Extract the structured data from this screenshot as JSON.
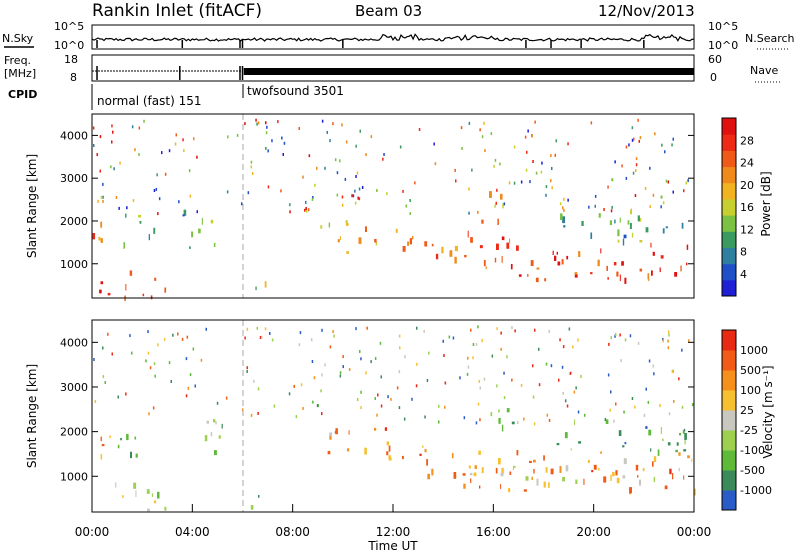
{
  "header": {
    "station": "Rankin Inlet (fitACF)",
    "beam": "Beam 03",
    "date": "12/Nov/2013"
  },
  "panels": {
    "noise": {
      "left_label": "N.Sky",
      "right_label": "N.Search",
      "left_ticks": [
        "10^5",
        "10^0"
      ],
      "right_ticks": [
        "10^5",
        "10^0"
      ]
    },
    "freq": {
      "left_label_1": "Freq.",
      "left_label_2": "[MHz]",
      "right_label": "Nave",
      "left_ticks": [
        "18",
        "8"
      ],
      "right_ticks": [
        "60",
        "0"
      ]
    },
    "cpid": {
      "label": "CPID",
      "modes": [
        {
          "name": "normal (fast) 151",
          "start_h": 0,
          "end_h": 6
        },
        {
          "name": "twofsound 3501",
          "start_h": 6,
          "end_h": 24
        }
      ]
    }
  },
  "chart_data": [
    {
      "type": "heatmap",
      "name": "power",
      "xlabel": "",
      "ylabel": "Slant Range [km]",
      "xlim_hours": [
        0,
        24
      ],
      "ylim": [
        200,
        4500
      ],
      "yticks": [
        "1000",
        "2000",
        "3000",
        "4000"
      ],
      "colorbar": {
        "label": "Power [dB]",
        "ticks": [
          "4",
          "8",
          "12",
          "16",
          "20",
          "24",
          "28"
        ],
        "colors": [
          "#1f1fd6",
          "#2050c8",
          "#2f7fa0",
          "#3a9a60",
          "#7bc242",
          "#c8d030",
          "#f2b321",
          "#f08a1c",
          "#f05a18",
          "#ee2a16",
          "#e01010"
        ]
      },
      "echo_regions": [
        {
          "t0": 0.1,
          "t1": 3.0,
          "r0": 250,
          "r1": 900,
          "level": 0.9
        },
        {
          "t0": 0.0,
          "t1": 0.7,
          "r0": 1100,
          "r1": 2200,
          "level": 0.7
        },
        {
          "t0": 1.0,
          "t1": 2.5,
          "r0": 1500,
          "r1": 2200,
          "level": 0.35
        },
        {
          "t0": 3.6,
          "t1": 5.3,
          "r0": 1400,
          "r1": 2300,
          "level": 0.35
        },
        {
          "t0": 6.3,
          "t1": 6.9,
          "r0": 300,
          "r1": 800,
          "level": 0.5
        },
        {
          "t0": 9.0,
          "t1": 10.4,
          "r0": 1200,
          "r1": 2100,
          "level": 0.55
        },
        {
          "t0": 10.6,
          "t1": 13.0,
          "r0": 1400,
          "r1": 2100,
          "level": 0.65
        },
        {
          "t0": 13.0,
          "t1": 15.0,
          "r0": 1000,
          "r1": 1800,
          "level": 0.7
        },
        {
          "t0": 14.8,
          "t1": 17.2,
          "r0": 700,
          "r1": 1700,
          "level": 0.85
        },
        {
          "t0": 17.2,
          "t1": 24.0,
          "r0": 650,
          "r1": 1600,
          "level": 0.88
        },
        {
          "t0": 15.5,
          "t1": 16.8,
          "r0": 2000,
          "r1": 2700,
          "level": 0.6
        },
        {
          "t0": 18.5,
          "t1": 23.8,
          "r0": 1500,
          "r1": 2300,
          "level": 0.35
        }
      ]
    },
    {
      "type": "heatmap",
      "name": "velocity",
      "xlabel": "Time UT",
      "ylabel": "Slant Range [km]",
      "xlim_hours": [
        0,
        24
      ],
      "ylim": [
        200,
        4500
      ],
      "yticks": [
        "1000",
        "2000",
        "3000",
        "4000"
      ],
      "xticks": [
        "00:00",
        "04:00",
        "08:00",
        "12:00",
        "16:00",
        "20:00",
        "00:00"
      ],
      "colorbar": {
        "label": "Velocity [m s⁻¹]",
        "ticks": [
          "1000",
          "500",
          "100",
          "25",
          "-25",
          "-100",
          "-500",
          "-1000"
        ],
        "colors": [
          "#2a5cc8",
          "#3a8a5a",
          "#5fba3a",
          "#9ed050",
          "#c8c8c0",
          "#f6c030",
          "#f5901c",
          "#f25a18",
          "#e82a14"
        ]
      },
      "echo_regions": [
        {
          "t0": 0.1,
          "t1": 3.0,
          "r0": 250,
          "r1": 900,
          "level": 0.5
        },
        {
          "t0": 0.0,
          "t1": 0.7,
          "r0": 1100,
          "r1": 2200,
          "level": 0.75
        },
        {
          "t0": 1.0,
          "t1": 2.5,
          "r0": 1500,
          "r1": 2200,
          "level": 0.3
        },
        {
          "t0": 3.6,
          "t1": 5.3,
          "r0": 1400,
          "r1": 2300,
          "level": 0.35
        },
        {
          "t0": 6.3,
          "t1": 6.9,
          "r0": 300,
          "r1": 800,
          "level": 0.3
        },
        {
          "t0": 9.0,
          "t1": 10.4,
          "r0": 1200,
          "r1": 2100,
          "level": 0.7
        },
        {
          "t0": 10.6,
          "t1": 13.0,
          "r0": 1400,
          "r1": 2100,
          "level": 0.78
        },
        {
          "t0": 13.0,
          "t1": 15.0,
          "r0": 1000,
          "r1": 1800,
          "level": 0.75
        },
        {
          "t0": 14.8,
          "t1": 17.2,
          "r0": 700,
          "r1": 1700,
          "level": 0.75
        },
        {
          "t0": 17.2,
          "t1": 24.0,
          "r0": 650,
          "r1": 1600,
          "level": 0.72
        },
        {
          "t0": 15.5,
          "t1": 16.8,
          "r0": 2000,
          "r1": 2700,
          "level": 0.3
        },
        {
          "t0": 18.5,
          "t1": 23.8,
          "r0": 1500,
          "r1": 2300,
          "level": 0.25
        },
        {
          "t0": 14.0,
          "t1": 23.5,
          "r0": 900,
          "r1": 1250,
          "level": 0.5
        }
      ]
    }
  ]
}
